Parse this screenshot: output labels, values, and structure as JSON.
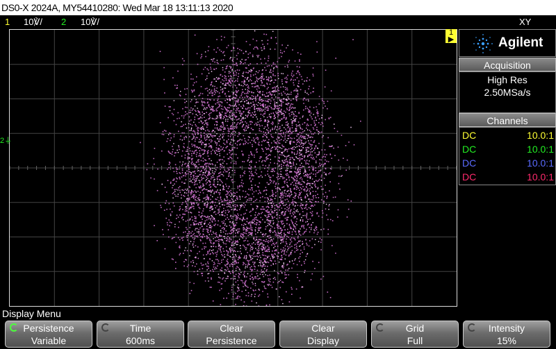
{
  "title": "DS0-X 2024A, MY54410280: Wed Mar 18 13:11:13 2020",
  "channels_bar": {
    "ch1": {
      "num": "1",
      "scale": "10℣/",
      "color": "#ffff33"
    },
    "ch2": {
      "num": "2",
      "scale": "10℣/",
      "color": "#22ee22"
    },
    "mode": "XY"
  },
  "markers": {
    "ch1": "1",
    "ch2": "2"
  },
  "panel": {
    "brand": "Agilent",
    "acquisition": {
      "header": "Acquisition",
      "mode": "High Res",
      "rate": "2.50MSa/s"
    },
    "channels": {
      "header": "Channels",
      "rows": [
        {
          "coupling": "DC",
          "probe": "10.0:1",
          "color": "#ffff33"
        },
        {
          "coupling": "DC",
          "probe": "10.0:1",
          "color": "#22ee22"
        },
        {
          "coupling": "DC",
          "probe": "10.0:1",
          "color": "#5a6bff"
        },
        {
          "coupling": "DC",
          "probe": "10.0:1",
          "color": "#ff2a6d"
        }
      ]
    }
  },
  "menu": {
    "title": "Display Menu",
    "keys": [
      {
        "line1": "Persistence",
        "line2": "Variable",
        "knob": true
      },
      {
        "line1": "Time",
        "line2": "600ms",
        "knob": true
      },
      {
        "line1": "Clear",
        "line2": "Persistence",
        "knob": false
      },
      {
        "line1": "Clear",
        "line2": "Display",
        "knob": false
      },
      {
        "line1": "Grid",
        "line2": "Full",
        "knob": true
      },
      {
        "line1": "Intensity",
        "line2": "15%",
        "knob": true
      }
    ]
  },
  "colors": {
    "trace": "#e07ae0",
    "grid": "#444444",
    "accent": "#4cff3c"
  }
}
